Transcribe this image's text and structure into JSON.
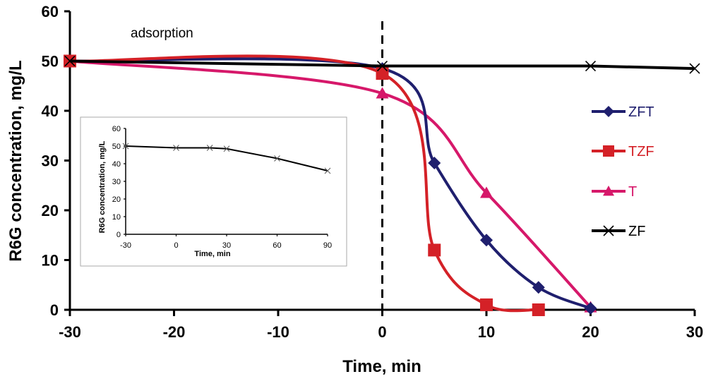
{
  "chart_data": [
    {
      "type": "line",
      "title": "",
      "xlabel": "Time, min",
      "ylabel": "R6G concentration, mg/L",
      "xlim": [
        -30,
        30
      ],
      "ylim": [
        0,
        60
      ],
      "xticks": [
        "-30",
        "-20",
        "-10",
        "0",
        "10",
        "20",
        "30"
      ],
      "yticks": [
        "0",
        "10",
        "20",
        "30",
        "40",
        "50",
        "60"
      ],
      "grid": false,
      "legend_position": "right",
      "annotations": [
        {
          "text": "adsorption"
        },
        {
          "text": "dashed vertical line at time 0"
        }
      ],
      "series": [
        {
          "name": "ZFT",
          "color": "#1f1f6e",
          "marker": "diamond",
          "x": [
            -30,
            0,
            5,
            10,
            15,
            20
          ],
          "y": [
            50,
            48.5,
            29.5,
            14,
            4.5,
            0.3
          ]
        },
        {
          "name": "TZF",
          "color": "#d42127",
          "marker": "square",
          "x": [
            -30,
            0,
            5,
            10,
            15
          ],
          "y": [
            50,
            47.5,
            12,
            1,
            0
          ]
        },
        {
          "name": "T",
          "color": "#d6186a",
          "marker": "triangle",
          "x": [
            -30,
            0,
            10,
            20
          ],
          "y": [
            50,
            43.5,
            23.5,
            0.5
          ]
        },
        {
          "name": "ZF",
          "color": "#000000",
          "marker": "x",
          "x": [
            -30,
            0,
            20,
            30
          ],
          "y": [
            50,
            49,
            49,
            48.5
          ]
        }
      ]
    },
    {
      "type": "line",
      "title": "",
      "xlabel": "Time, min",
      "ylabel": "R6G concentration, mg/L",
      "xlim": [
        -30,
        90
      ],
      "ylim": [
        0,
        60
      ],
      "xticks": [
        "-30",
        "0",
        "30",
        "60",
        "90"
      ],
      "yticks": [
        "0",
        "10",
        "20",
        "30",
        "40",
        "50",
        "60"
      ],
      "grid": false,
      "series": [
        {
          "name": "ZF",
          "color": "#000000",
          "marker": "x",
          "x": [
            -30,
            0,
            20,
            30,
            60,
            90
          ],
          "y": [
            50,
            49,
            49,
            48.5,
            43,
            36
          ]
        }
      ]
    }
  ]
}
